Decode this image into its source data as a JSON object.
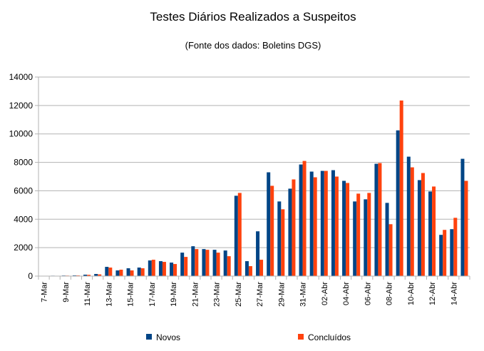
{
  "chart_data": {
    "type": "bar",
    "title": "Testes Diários Realizados a Suspeitos",
    "subtitle": "(Fonte dos dados: Boletins DGS)",
    "xlabel": "",
    "ylabel": "",
    "ylim": [
      0,
      14000
    ],
    "yticks": [
      0,
      2000,
      4000,
      6000,
      8000,
      10000,
      12000,
      14000
    ],
    "grid": true,
    "legend_position": "bottom",
    "categories": [
      "7-Mar",
      "8-Mar",
      "9-Mar",
      "10-Mar",
      "11-Mar",
      "12-Mar",
      "13-Mar",
      "14-Mar",
      "15-Mar",
      "16-Mar",
      "17-Mar",
      "18-Mar",
      "19-Mar",
      "20-Mar",
      "21-Mar",
      "22-Mar",
      "23-Mar",
      "24-Mar",
      "25-Mar",
      "26-Mar",
      "27-Mar",
      "28-Mar",
      "29-Mar",
      "30-Mar",
      "31-Mar",
      "01-Abr",
      "02-Abr",
      "03-Abr",
      "04-Abr",
      "05-Abr",
      "06-Abr",
      "07-Abr",
      "08-Abr",
      "09-Abr",
      "10-Abr",
      "11-Abr",
      "12-Abr",
      "13-Abr",
      "14-Abr",
      "15-Abr"
    ],
    "tick_labels": [
      "7-Mar",
      "",
      "9-Mar",
      "",
      "11-Mar",
      "",
      "13-Mar",
      "",
      "15-Mar",
      "",
      "17-Mar",
      "",
      "19-Mar",
      "",
      "21-Mar",
      "",
      "23-Mar",
      "",
      "25-Mar",
      "",
      "27-Mar",
      "",
      "29-Mar",
      "",
      "31-Mar",
      "",
      "02-Abr",
      "",
      "04-Abr",
      "",
      "06-Abr",
      "",
      "08-Abr",
      "",
      "10-Abr",
      "",
      "12-Abr",
      "",
      "14-Abr",
      ""
    ],
    "series": [
      {
        "name": "Novos",
        "color": "#004586",
        "values": [
          20,
          30,
          40,
          50,
          100,
          150,
          650,
          400,
          550,
          600,
          1100,
          1050,
          950,
          1650,
          2100,
          1900,
          1850,
          1800,
          5650,
          1050,
          3150,
          7300,
          5250,
          6150,
          7850,
          7350,
          7400,
          7450,
          6700,
          5250,
          5400,
          7900,
          5150,
          10250,
          8400,
          6750,
          5950,
          2900,
          3300,
          8250
        ]
      },
      {
        "name": "Concluídos",
        "color": "#ff420e",
        "values": [
          15,
          25,
          35,
          45,
          90,
          120,
          600,
          450,
          400,
          550,
          1150,
          1000,
          850,
          1350,
          1900,
          1850,
          1650,
          1400,
          5850,
          700,
          1150,
          6350,
          4700,
          6800,
          8100,
          6950,
          7400,
          7000,
          6550,
          5800,
          5850,
          7950,
          3650,
          12350,
          7650,
          7250,
          6300,
          3250,
          4100,
          6700
        ]
      }
    ]
  }
}
